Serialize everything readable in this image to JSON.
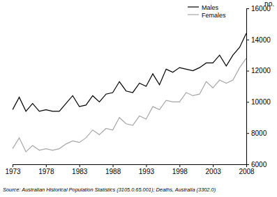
{
  "chart_data": {
    "type": "line",
    "ylabel": "no.",
    "source": "Source: Australian Historical Population Statistics (3105.0.65.001); Deaths, Australia (3302.0)",
    "x": [
      1973,
      1974,
      1975,
      1976,
      1977,
      1978,
      1979,
      1980,
      1981,
      1982,
      1983,
      1984,
      1985,
      1986,
      1987,
      1988,
      1989,
      1990,
      1991,
      1992,
      1993,
      1994,
      1995,
      1996,
      1997,
      1998,
      1999,
      2000,
      2001,
      2002,
      2003,
      2004,
      2005,
      2006,
      2007,
      2008
    ],
    "series": [
      {
        "name": "Males",
        "color": "#000000",
        "values": [
          9500,
          10300,
          9400,
          9900,
          9400,
          9500,
          9400,
          9400,
          9900,
          10400,
          9700,
          9800,
          10400,
          10000,
          10500,
          10600,
          11300,
          10700,
          10600,
          11200,
          11000,
          11800,
          11100,
          12100,
          11900,
          12200,
          12100,
          12000,
          12200,
          12500,
          12500,
          13000,
          12300,
          13000,
          13500,
          14400
        ]
      },
      {
        "name": "Females",
        "color": "#a6a6a6",
        "values": [
          7000,
          7700,
          6800,
          7200,
          6900,
          7000,
          6900,
          7000,
          7300,
          7500,
          7400,
          7700,
          8200,
          7900,
          8300,
          8200,
          9000,
          8600,
          8500,
          9100,
          8900,
          9700,
          9500,
          10100,
          10000,
          10000,
          10600,
          10400,
          10500,
          11300,
          10900,
          11400,
          11200,
          11400,
          12200,
          12800
        ]
      }
    ],
    "xlim": [
      1973,
      2008
    ],
    "xticks": [
      1973,
      1978,
      1983,
      1988,
      1993,
      1998,
      2003,
      2008
    ],
    "ylim": [
      6000,
      16000
    ],
    "yticks": [
      6000,
      8000,
      10000,
      12000,
      14000,
      16000
    ],
    "legend": "upper right",
    "grid": false
  }
}
